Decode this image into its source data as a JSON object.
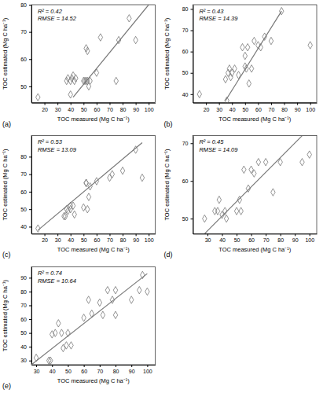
{
  "chart_data": [
    {
      "type": "scatter",
      "title": "(a)",
      "annotations": [
        "R² = 0.42",
        "RMSE = 14.52"
      ],
      "xlabel": "TOC measured (Mg C ha⁻¹)",
      "ylabel": "TOC estimated (Mg C ha⁻¹)",
      "xlim": [
        10,
        105
      ],
      "ylim": [
        44,
        80
      ],
      "xticks": [
        20,
        30,
        40,
        50,
        60,
        70,
        80,
        90,
        100
      ],
      "yticks": [
        50,
        60,
        70,
        80
      ],
      "grid": false,
      "series": [
        {
          "type": "scatter",
          "marker": "diamond",
          "color": "#777777",
          "x": [
            15,
            37,
            38,
            40,
            40,
            41,
            42,
            43,
            44,
            50,
            51,
            52,
            52,
            53,
            53,
            54,
            55,
            60,
            63,
            75,
            77,
            85,
            90
          ],
          "values": [
            46,
            52,
            53,
            52,
            47,
            53,
            54,
            52,
            53,
            52,
            52,
            52,
            64,
            52,
            63,
            50,
            52,
            55,
            68,
            52,
            67,
            75,
            67
          ]
        },
        {
          "type": "line",
          "color": "#777777",
          "x": [
            42,
            100
          ],
          "values": [
            46,
            80
          ]
        }
      ]
    },
    {
      "type": "scatter",
      "title": "(b)",
      "annotations": [
        "R² = 0.43",
        "RMSE = 14.39"
      ],
      "xlabel": "TOC measured (Mg C ha⁻¹)",
      "ylabel": "TOC estimated (Mg C ha⁻¹)",
      "xlim": [
        10,
        105
      ],
      "ylim": [
        36,
        82
      ],
      "xticks": [
        20,
        30,
        40,
        50,
        60,
        70,
        80,
        90,
        100
      ],
      "yticks": [
        40,
        50,
        60,
        70,
        80
      ],
      "grid": false,
      "series": [
        {
          "type": "scatter",
          "marker": "diamond",
          "color": "#777777",
          "x": [
            15,
            35,
            36,
            37,
            38,
            39,
            40,
            42,
            45,
            48,
            50,
            50,
            51,
            52,
            53,
            55,
            57,
            60,
            62,
            65,
            70,
            78,
            100
          ],
          "values": [
            40,
            47,
            37,
            50,
            52,
            48,
            50,
            52,
            49,
            62,
            53,
            58,
            52,
            62,
            45,
            52,
            65,
            63,
            62,
            67,
            65,
            79,
            63
          ]
        },
        {
          "type": "line",
          "color": "#777777",
          "x": [
            35,
            78
          ],
          "values": [
            37,
            79
          ]
        }
      ]
    },
    {
      "type": "scatter",
      "title": "(c)",
      "annotations": [
        "R² = 0.53",
        "RMSE = 13.09"
      ],
      "xlabel": "TOC measured (Mg C ha⁻¹)",
      "ylabel": "TOC estimated (Mg C ha⁻¹)",
      "xlim": [
        10,
        105
      ],
      "ylim": [
        36,
        92
      ],
      "xticks": [
        20,
        30,
        40,
        50,
        60,
        70,
        80,
        90,
        100
      ],
      "yticks": [
        40,
        50,
        60,
        70,
        80
      ],
      "grid": false,
      "series": [
        {
          "type": "scatter",
          "marker": "diamond",
          "color": "#777777",
          "x": [
            15,
            35,
            36,
            37,
            38,
            40,
            40,
            42,
            43,
            50,
            52,
            52,
            53,
            54,
            55,
            60,
            70,
            72,
            80,
            90,
            95
          ],
          "values": [
            39,
            46,
            46,
            50,
            49,
            50,
            52,
            52,
            47,
            51,
            65,
            65,
            50,
            57,
            63,
            66,
            68,
            70,
            72,
            84,
            68
          ]
        },
        {
          "type": "line",
          "color": "#777777",
          "x": [
            15,
            95
          ],
          "values": [
            38,
            88
          ]
        }
      ]
    },
    {
      "type": "scatter",
      "title": "(d)",
      "annotations": [
        "R² = 0.45",
        "RMSE = 14.09"
      ],
      "xlabel": "TOC measured (Mg C ha⁻¹)",
      "ylabel": "TOC estimated (Mg C ha⁻¹)",
      "xlim": [
        20,
        105
      ],
      "ylim": [
        46,
        72
      ],
      "xticks": [
        30,
        40,
        50,
        60,
        70,
        80,
        90,
        100
      ],
      "yticks": [
        50,
        60,
        70
      ],
      "grid": false,
      "series": [
        {
          "type": "scatter",
          "marker": "diamond",
          "color": "#777777",
          "x": [
            28,
            35,
            37,
            38,
            40,
            42,
            43,
            50,
            52,
            53,
            55,
            58,
            60,
            62,
            65,
            70,
            75,
            80,
            95,
            100
          ],
          "values": [
            50,
            52,
            52,
            55,
            51,
            52,
            50,
            52,
            55,
            52,
            63,
            58,
            63,
            62,
            65,
            65,
            57,
            65,
            65,
            67
          ]
        },
        {
          "type": "line",
          "color": "#777777",
          "x": [
            28,
            95
          ],
          "values": [
            46,
            72
          ]
        }
      ]
    },
    {
      "type": "scatter",
      "title": "(e)",
      "annotations": [
        "R² = 0.74",
        "RMSE = 10.64"
      ],
      "xlabel": "TOC measured (Mg C ha⁻¹)",
      "ylabel": "TOC estimated (Mg C ha⁻¹)",
      "xlim": [
        27,
        105
      ],
      "ylim": [
        27,
        98
      ],
      "xticks": [
        30,
        40,
        50,
        60,
        70,
        80,
        90,
        100
      ],
      "yticks": [
        30,
        40,
        50,
        60,
        70,
        80,
        90
      ],
      "grid": false,
      "series": [
        {
          "type": "scatter",
          "marker": "diamond",
          "color": "#777777",
          "x": [
            30,
            38,
            39,
            40,
            42,
            44,
            46,
            47,
            49,
            50,
            52,
            60,
            63,
            65,
            70,
            72,
            75,
            78,
            80,
            80,
            90,
            95,
            97,
            100
          ],
          "values": [
            32,
            30,
            30,
            49,
            50,
            57,
            50,
            39,
            41,
            50,
            41,
            61,
            74,
            64,
            72,
            63,
            81,
            74,
            81,
            63,
            74,
            81,
            92,
            80
          ]
        },
        {
          "type": "line",
          "color": "#777777",
          "x": [
            27,
            100
          ],
          "values": [
            27,
            93
          ]
        }
      ]
    }
  ]
}
